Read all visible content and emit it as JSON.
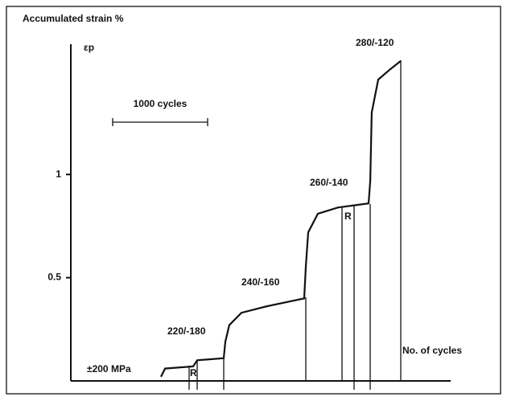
{
  "chart_data": {
    "type": "line",
    "title": "Accumulated strain %",
    "y_label": "εp",
    "x_label": "No. of cycles",
    "scale_bar": "1000 cycles",
    "annotations": [
      "±200 MPa",
      "220/-180",
      "240/-160",
      "260/-140",
      "280/-120",
      "R",
      "R"
    ],
    "x": [
      949,
      992,
      1288,
      1331,
      1610,
      1627,
      1669,
      1797,
      2051,
      2458,
      2475,
      2500,
      2602,
      2814,
      3136,
      3153,
      3169,
      3237,
      3364,
      3475
    ],
    "values": [
      0.02,
      0.06,
      0.07,
      0.1,
      0.11,
      0.19,
      0.27,
      0.33,
      0.36,
      0.4,
      0.56,
      0.72,
      0.81,
      0.84,
      0.86,
      0.97,
      1.3,
      1.46,
      1.51,
      1.55
    ],
    "color": "#111111",
    "xlim": [
      0,
      4000
    ],
    "ylim": [
      0,
      1.6
    ],
    "yticks": [
      0.5,
      1
    ]
  }
}
